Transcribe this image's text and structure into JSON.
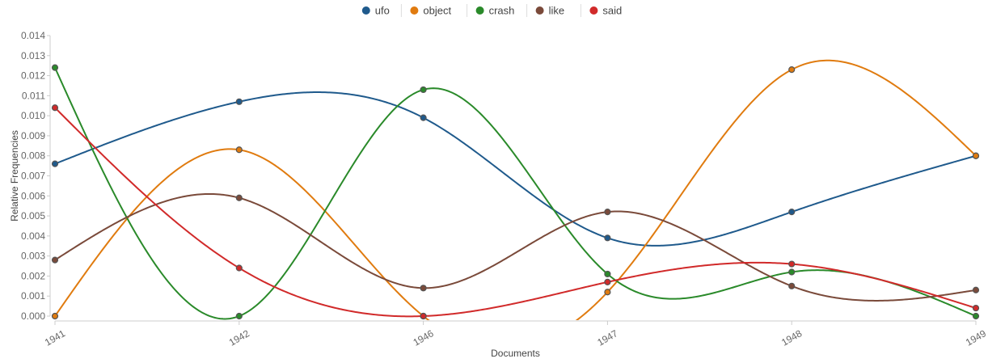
{
  "chart_data": {
    "type": "line",
    "title": "",
    "xlabel": "Documents",
    "ylabel": "Relative Frequencies",
    "categories": [
      "1941",
      "1942",
      "1946",
      "1947",
      "1948",
      "1949"
    ],
    "ylim": [
      0,
      0.014
    ],
    "yticks": [
      "0.000",
      "0.001",
      "0.002",
      "0.003",
      "0.004",
      "0.005",
      "0.006",
      "0.007",
      "0.008",
      "0.009",
      "0.010",
      "0.011",
      "0.012",
      "0.013",
      "0.014"
    ],
    "grid": false,
    "legend_position": "top-center",
    "smooth": true,
    "series": [
      {
        "name": "ufo",
        "color": "#1f5a8c",
        "values": [
          0.0076,
          0.0107,
          0.0099,
          0.0039,
          0.0052,
          0.008
        ]
      },
      {
        "name": "object",
        "color": "#e07b0f",
        "values": [
          0.0,
          0.0083,
          0.0,
          0.0012,
          0.0123,
          0.008
        ]
      },
      {
        "name": "crash",
        "color": "#2a8a2a",
        "values": [
          0.0124,
          0.0,
          0.0113,
          0.0021,
          0.0022,
          0.0
        ]
      },
      {
        "name": "like",
        "color": "#7a4a3a",
        "values": [
          0.0028,
          0.0059,
          0.0014,
          0.0052,
          0.0015,
          0.0013
        ]
      },
      {
        "name": "said",
        "color": "#d12a2a",
        "values": [
          0.0104,
          0.0024,
          0.0,
          0.0017,
          0.0026,
          0.0004
        ]
      }
    ]
  }
}
